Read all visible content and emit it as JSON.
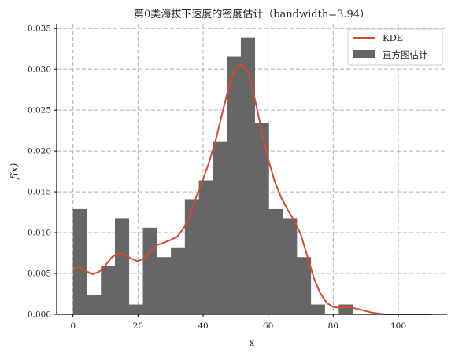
{
  "chart_data": {
    "type": "bar",
    "title": "第0类海拔下速度的密度估计（bandwidth=3.94）",
    "xlabel": "x",
    "ylabel": "f(x)",
    "xlim": [
      -5,
      115
    ],
    "ylim": [
      0,
      0.0355
    ],
    "xticks": [
      0,
      20,
      40,
      60,
      80,
      100
    ],
    "yticks": [
      0.0,
      0.005,
      0.01,
      0.015,
      0.02,
      0.025,
      0.03,
      0.035
    ],
    "ytick_labels": [
      "0.000",
      "0.005",
      "0.010",
      "0.015",
      "0.020",
      "0.025",
      "0.030",
      "0.035"
    ],
    "grid": true,
    "legend_position": "top-right",
    "bin_width": 4.3,
    "histogram": {
      "name": "直方图估计",
      "color": "#666666",
      "bin_left_edges": [
        0.0,
        4.3,
        8.6,
        12.9,
        17.2,
        21.5,
        25.8,
        30.1,
        34.4,
        38.7,
        43.0,
        47.3,
        51.6,
        55.9,
        60.2,
        64.5,
        68.8,
        73.1,
        77.4,
        81.7
      ],
      "values": [
        0.0129,
        0.0024,
        0.0059,
        0.0117,
        0.0012,
        0.0106,
        0.007,
        0.0082,
        0.0141,
        0.0164,
        0.0211,
        0.0316,
        0.0339,
        0.0234,
        0.0129,
        0.0117,
        0.007,
        0.0012,
        0.0,
        0.0012
      ]
    },
    "kde": {
      "name": "KDE",
      "color": "#d84a2b",
      "x": [
        0,
        2,
        4,
        6,
        8,
        10,
        12,
        14,
        16,
        18,
        20,
        22,
        24,
        26,
        28,
        30,
        32,
        34,
        36,
        38,
        40,
        42,
        44,
        46,
        48,
        50,
        52,
        54,
        56,
        58,
        60,
        62,
        64,
        66,
        68,
        70,
        72,
        74,
        76,
        78,
        80,
        82,
        84,
        86,
        88,
        90,
        92,
        94,
        96,
        98,
        100,
        102,
        104,
        106,
        108,
        110
      ],
      "y": [
        0.0056,
        0.0058,
        0.0053,
        0.0049,
        0.0052,
        0.006,
        0.007,
        0.0075,
        0.0073,
        0.0068,
        0.0065,
        0.0069,
        0.0078,
        0.0085,
        0.0088,
        0.0091,
        0.0095,
        0.0105,
        0.0122,
        0.0145,
        0.0165,
        0.0188,
        0.0215,
        0.0248,
        0.028,
        0.0302,
        0.0306,
        0.0295,
        0.0262,
        0.0225,
        0.019,
        0.0163,
        0.0143,
        0.0128,
        0.0115,
        0.0098,
        0.0072,
        0.0045,
        0.0026,
        0.0014,
        0.0009,
        0.0008,
        0.0009,
        0.0008,
        0.0006,
        0.0004,
        0.0002,
        0.0001,
        0.0,
        0.0,
        0.0,
        0.0,
        0.0,
        0.0,
        0.0,
        0.0
      ]
    }
  }
}
